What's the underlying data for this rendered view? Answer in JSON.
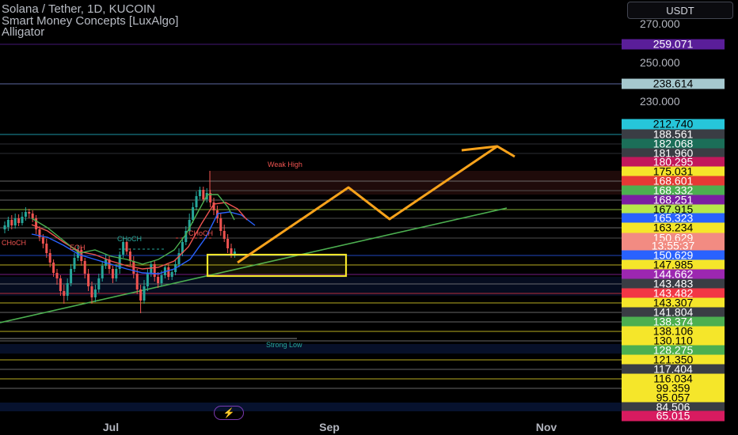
{
  "legend": {
    "title": "Solana / Tether, 1D, KUCOIN",
    "indicator_1": "Smart Money Concepts [LuxAlgo]",
    "indicator_2": "Alligator"
  },
  "currency_button": "USDT",
  "price_scale": {
    "ticks": [
      "270.000",
      "250.000",
      "230.000"
    ],
    "badges": [
      {
        "text": "259.071",
        "bg": "#5a1e99",
        "fg": "#ffffff"
      },
      {
        "text": "238.614",
        "bg": "#a6c9cf",
        "fg": "#000000"
      },
      {
        "text": "212.740",
        "bg": "#26c6da",
        "fg": "#000000"
      },
      {
        "text": "188.561",
        "bg": "#3a3d44",
        "fg": "#ffffff"
      },
      {
        "text": "182.068",
        "bg": "#1b6e58",
        "fg": "#ffffff"
      },
      {
        "text": "181.960",
        "bg": "#3a3d44",
        "fg": "#ffffff"
      },
      {
        "text": "180.295",
        "bg": "#c2185b",
        "fg": "#ffffff"
      },
      {
        "text": "175.031",
        "bg": "#f5e62a",
        "fg": "#000000"
      },
      {
        "text": "168.601",
        "bg": "#e53935",
        "fg": "#ffffff"
      },
      {
        "text": "168.332",
        "bg": "#4caf50",
        "fg": "#ffffff"
      },
      {
        "text": "168.251",
        "bg": "#7b1fa2",
        "fg": "#ffffff"
      },
      {
        "text": "167.915",
        "bg": "#b7e84a",
        "fg": "#000000"
      },
      {
        "text": "165.323",
        "bg": "#2962ff",
        "fg": "#ffffff"
      },
      {
        "text": "163.234",
        "bg": "#f5e62a",
        "fg": "#000000"
      },
      {
        "text": "150.629",
        "bg": "#f28b82",
        "fg": "#ffffff"
      },
      {
        "text": "13:55:37",
        "bg": "#f28b82",
        "fg": "#ffffff"
      },
      {
        "text": "150.629",
        "bg": "#2962ff",
        "fg": "#ffffff"
      },
      {
        "text": "147.985",
        "bg": "#f5e62a",
        "fg": "#000000"
      },
      {
        "text": "144.662",
        "bg": "#9c27b0",
        "fg": "#ffffff"
      },
      {
        "text": "143.483",
        "bg": "#3a3d44",
        "fg": "#ffffff"
      },
      {
        "text": "143.482",
        "bg": "#f23645",
        "fg": "#ffffff"
      },
      {
        "text": "143.307",
        "bg": "#f5e62a",
        "fg": "#000000"
      },
      {
        "text": "141.804",
        "bg": "#3a3d44",
        "fg": "#ffffff"
      },
      {
        "text": "138.374",
        "bg": "#4caf50",
        "fg": "#ffffff"
      },
      {
        "text": "138.106",
        "bg": "#f5e62a",
        "fg": "#000000"
      },
      {
        "text": "130.110",
        "bg": "#f5e62a",
        "fg": "#000000"
      },
      {
        "text": "128.275",
        "bg": "#4caf50",
        "fg": "#ffffff"
      },
      {
        "text": "121.350",
        "bg": "#f5e62a",
        "fg": "#000000"
      },
      {
        "text": "117.404",
        "bg": "#3a3d44",
        "fg": "#ffffff"
      },
      {
        "text": "116.034",
        "bg": "#f5e62a",
        "fg": "#000000"
      },
      {
        "text": "99.359",
        "bg": "#f5e62a",
        "fg": "#000000"
      },
      {
        "text": "95.057",
        "bg": "#f5e62a",
        "fg": "#000000"
      },
      {
        "text": "84.506",
        "bg": "#3a3d44",
        "fg": "#ffffff"
      },
      {
        "text": "65.015",
        "bg": "#d81b60",
        "fg": "#ffffff"
      }
    ]
  },
  "time_scale": [
    "Jul",
    "Sep",
    "Nov"
  ],
  "annotations": {
    "weak_high": "Weak High",
    "strong_low": "Strong Low",
    "choch_1": "CHoCH",
    "choch_2": "CHoCH",
    "choch_3": "CHoCH",
    "eqh": "EQH"
  },
  "colors": {
    "background": "#000000",
    "bull_candle": "#26a69a",
    "bear_candle": "#ef5350",
    "projection": "#f7a21b",
    "trendline": "#4caf50",
    "highlight_box": "#f5e62a"
  },
  "icons": {
    "flash": "lightning-icon"
  }
}
